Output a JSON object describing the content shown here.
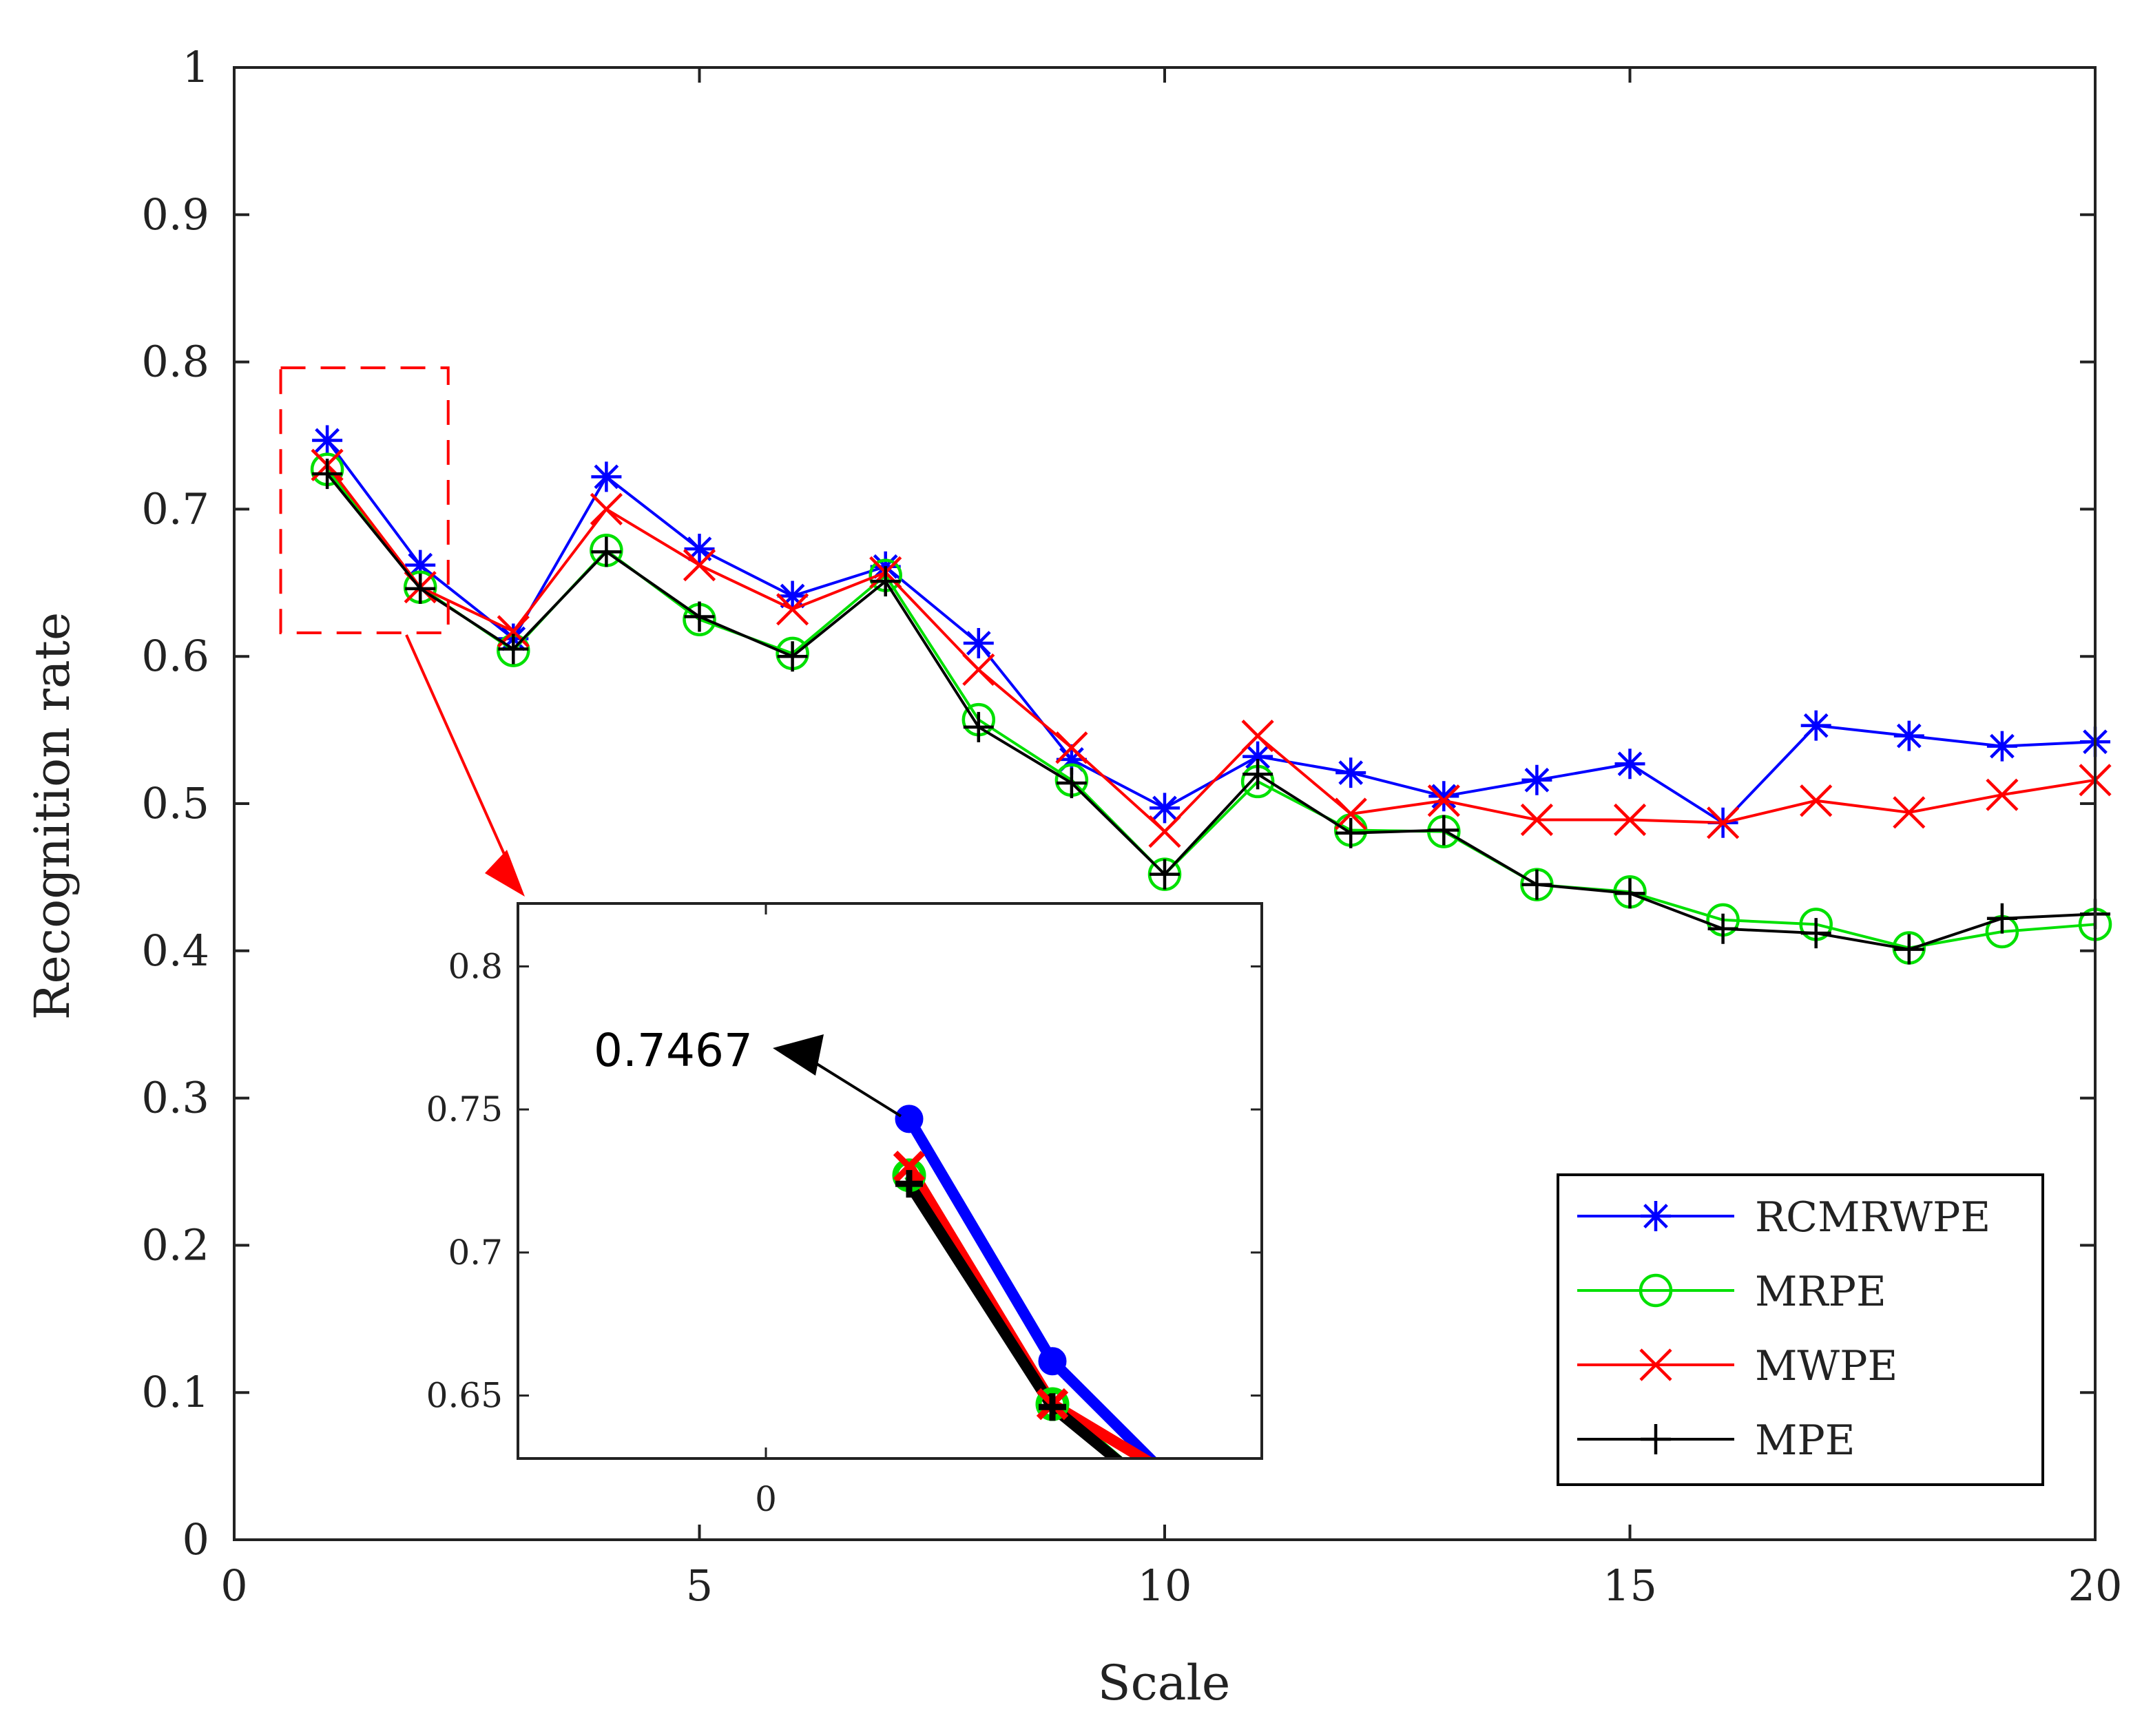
{
  "chart_data": {
    "type": "line",
    "xlabel": "Scale",
    "ylabel": "Recognition rate",
    "xlim": [
      0,
      20
    ],
    "ylim": [
      0,
      1
    ],
    "x_ticks": [
      "0",
      "5",
      "10",
      "15",
      "20"
    ],
    "y_ticks": [
      "0",
      "0.1",
      "0.2",
      "0.3",
      "0.4",
      "0.5",
      "0.6",
      "0.7",
      "0.8",
      "0.9",
      "1"
    ],
    "grid": false,
    "legend_position": "bottom-right",
    "x": [
      1,
      2,
      3,
      4,
      5,
      6,
      7,
      8,
      9,
      10,
      11,
      12,
      13,
      14,
      15,
      16,
      17,
      18,
      19,
      20
    ],
    "series": [
      {
        "name": "RCMRWPE",
        "color": "#0000ff",
        "marker": "asterisk",
        "values": [
          0.7467,
          0.662,
          0.612,
          0.722,
          0.673,
          0.641,
          0.661,
          0.609,
          0.53,
          0.497,
          0.532,
          0.521,
          0.505,
          0.516,
          0.527,
          0.487,
          0.553,
          0.546,
          0.539,
          0.542
        ]
      },
      {
        "name": "MRPE",
        "color": "#00e000",
        "marker": "circle",
        "values": [
          0.727,
          0.647,
          0.604,
          0.672,
          0.625,
          0.602,
          0.655,
          0.557,
          0.516,
          0.452,
          0.515,
          0.482,
          0.481,
          0.445,
          0.44,
          0.421,
          0.418,
          0.402,
          0.413,
          0.418
        ]
      },
      {
        "name": "MWPE",
        "color": "#ff0000",
        "marker": "x",
        "values": [
          0.73,
          0.647,
          0.617,
          0.7,
          0.662,
          0.632,
          0.657,
          0.591,
          0.538,
          0.481,
          0.546,
          0.493,
          0.502,
          0.489,
          0.489,
          0.487,
          0.502,
          0.494,
          0.506,
          0.516
        ]
      },
      {
        "name": "MPE",
        "color": "#000000",
        "marker": "plus",
        "values": [
          0.724,
          0.646,
          0.605,
          0.671,
          0.627,
          0.6,
          0.651,
          0.552,
          0.514,
          0.452,
          0.52,
          0.48,
          0.482,
          0.445,
          0.439,
          0.415,
          0.412,
          0.401,
          0.422,
          0.425
        ]
      }
    ],
    "inset": {
      "y_ticks": [
        "0.8",
        "0.75",
        "0.7",
        "0.65"
      ],
      "x_ticks": [
        "0"
      ],
      "ylim": [
        0.628,
        0.822
      ],
      "annotation": "0.7467",
      "zoom_region": {
        "xlim": [
          0.5,
          2.3
        ],
        "ylim": [
          0.616,
          0.796
        ]
      }
    }
  }
}
